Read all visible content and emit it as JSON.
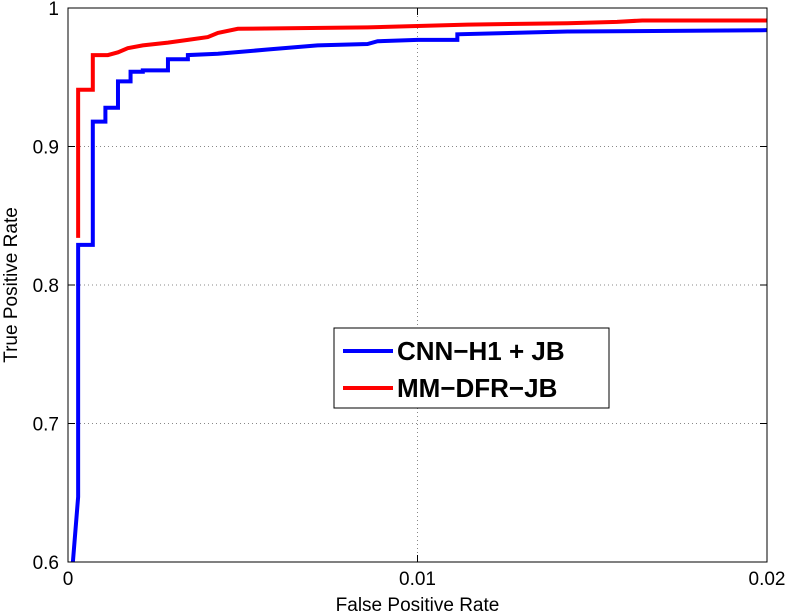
{
  "chart_data": {
    "type": "line",
    "title": "",
    "xlabel": "False Positive Rate",
    "ylabel": "True Positive Rate",
    "xlim": [
      0,
      0.02
    ],
    "ylim": [
      0.6,
      1
    ],
    "xticks": [
      {
        "value": 0,
        "label": "0"
      },
      {
        "value": 0.01,
        "label": "0.01"
      },
      {
        "value": 0.02,
        "label": "0.02"
      }
    ],
    "yticks": [
      {
        "value": 0.6,
        "label": "0.6"
      },
      {
        "value": 0.7,
        "label": "0.7"
      },
      {
        "value": 0.8,
        "label": "0.8"
      },
      {
        "value": 0.9,
        "label": "0.9"
      },
      {
        "value": 1,
        "label": "1"
      }
    ],
    "grid": true,
    "legend_position": "center",
    "series": [
      {
        "name": "CNN−H1 + JB",
        "color": "#0000ff",
        "points": [
          [
            0.00014,
            0.6
          ],
          [
            0.00029,
            0.647
          ],
          [
            0.00029,
            0.829
          ],
          [
            0.00071,
            0.829
          ],
          [
            0.00071,
            0.918
          ],
          [
            0.00107,
            0.918
          ],
          [
            0.00107,
            0.928
          ],
          [
            0.00143,
            0.928
          ],
          [
            0.00143,
            0.947
          ],
          [
            0.00179,
            0.947
          ],
          [
            0.00179,
            0.954
          ],
          [
            0.00214,
            0.954
          ],
          [
            0.00214,
            0.955
          ],
          [
            0.00286,
            0.955
          ],
          [
            0.00286,
            0.963
          ],
          [
            0.00343,
            0.963
          ],
          [
            0.00343,
            0.966
          ],
          [
            0.00429,
            0.967
          ],
          [
            0.00571,
            0.97
          ],
          [
            0.00714,
            0.973
          ],
          [
            0.00857,
            0.974
          ],
          [
            0.00886,
            0.976
          ],
          [
            0.01,
            0.977
          ],
          [
            0.01114,
            0.977
          ],
          [
            0.01114,
            0.981
          ],
          [
            0.01429,
            0.983
          ],
          [
            0.02,
            0.984
          ]
        ]
      },
      {
        "name": "MM−DFR−JB",
        "color": "#ff0000",
        "points": [
          [
            0.00029,
            0.834
          ],
          [
            0.00029,
            0.941
          ],
          [
            0.00071,
            0.941
          ],
          [
            0.00071,
            0.966
          ],
          [
            0.00114,
            0.966
          ],
          [
            0.00143,
            0.968
          ],
          [
            0.00171,
            0.971
          ],
          [
            0.00214,
            0.973
          ],
          [
            0.00286,
            0.975
          ],
          [
            0.00343,
            0.977
          ],
          [
            0.004,
            0.979
          ],
          [
            0.00429,
            0.982
          ],
          [
            0.00486,
            0.985
          ],
          [
            0.00857,
            0.986
          ],
          [
            0.01143,
            0.988
          ],
          [
            0.01429,
            0.989
          ],
          [
            0.01571,
            0.99
          ],
          [
            0.01643,
            0.991
          ],
          [
            0.02,
            0.991
          ]
        ]
      }
    ]
  }
}
